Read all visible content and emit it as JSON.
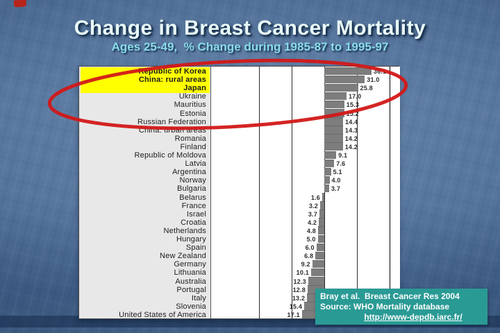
{
  "slide": {
    "title": "Change in Breast Cancer Mortality",
    "subtitle": "Ages 25-49,  % Change during 1985-87 to 1995-97"
  },
  "chart_data": {
    "type": "bar",
    "orientation": "horizontal",
    "title": "Change in Breast Cancer Mortality, ages 25-49, % change during 1985-87 to 1995-97",
    "xlabel": "% change",
    "ylabel": "",
    "xlim": [
      -87,
      57
    ],
    "gridlines_x": [
      -50,
      -25,
      0,
      25,
      50
    ],
    "grid": true,
    "legend": "none",
    "categories": [
      "Republic of Korea",
      "China: rural areas",
      "Japan",
      "Ukraine",
      "Mauritius",
      "Estonia",
      "Russian Federation",
      "China: urban areas",
      "Romania",
      "Finland",
      "Republic of Moldova",
      "Latvia",
      "Argentina",
      "Norway",
      "Bulgaria",
      "Belarus",
      "France",
      "Israel",
      "Croatia",
      "Netherlands",
      "Hungary",
      "Spain",
      "New Zealand",
      "Germany",
      "Lithuania",
      "Australia",
      "Portugal",
      "Italy",
      "Slovenia",
      "United States of America"
    ],
    "values": [
      36.1,
      31.0,
      25.8,
      17.0,
      15.3,
      15.2,
      14.4,
      14.3,
      14.2,
      14.2,
      9.1,
      7.6,
      5.1,
      4.0,
      3.7,
      -1.6,
      -3.2,
      -3.7,
      -4.2,
      -4.8,
      -5.0,
      -6.0,
      -6.8,
      -9.2,
      -10.1,
      -12.3,
      -12.8,
      -13.2,
      -15.4,
      -17.1
    ],
    "value_label_style": "absolute value, one decimal, outside bar end",
    "highlighted_categories": [
      "Republic of Korea",
      "China: rural areas",
      "Japan"
    ],
    "annotation": "red ellipse circling the top three highlighted countries"
  },
  "citation": {
    "line1": "Bray et al.  Breast Cancer Res 2004",
    "line2": "Source: WHO Mortality database",
    "link": "http://www-depdb.iarc.fr/"
  },
  "colors": {
    "bar": "#7d7d7d",
    "highlight_yellow": "#ffff00",
    "annotation_red": "#d21818",
    "citation_teal": "#2a9a94",
    "title_text": "#e9faf8",
    "subtitle_text": "#8adce9",
    "label_panel": "#e8e8e8"
  }
}
